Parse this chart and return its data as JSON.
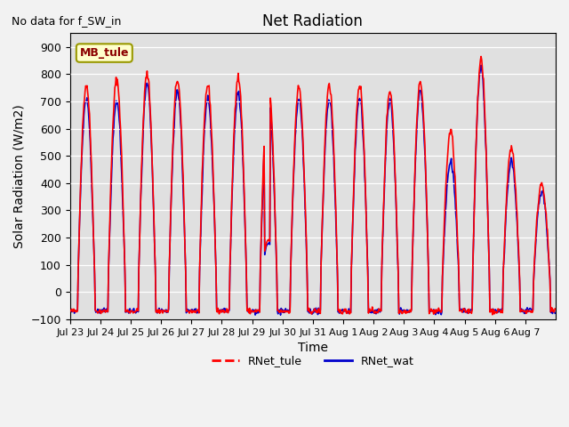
{
  "title": "Net Radiation",
  "subtitle": "No data for f_SW_in",
  "xlabel": "Time",
  "ylabel": "Solar Radiation (W/m2)",
  "ylim": [
    -100,
    950
  ],
  "yticks": [
    -100,
    0,
    100,
    200,
    300,
    400,
    500,
    600,
    700,
    800,
    900
  ],
  "x_tick_labels": [
    "Jul 23",
    "Jul 24",
    "Jul 25",
    "Jul 26",
    "Jul 27",
    "Jul 28",
    "Jul 29",
    "Jul 30",
    "Jul 31",
    "Aug 1",
    "Aug 2",
    "Aug 3",
    "Aug 4",
    "Aug 5",
    "Aug 6",
    "Aug 7"
  ],
  "color_tule": "#ff0000",
  "color_wat": "#0000cc",
  "legend_label_tule": "RNet_tule",
  "legend_label_wat": "RNet_wat",
  "legend_box_label": "MB_tule",
  "bg_color": "#e0e0e0",
  "fig_bg_color": "#f2f2f2",
  "n_days": 16,
  "pts_per_day": 48,
  "day_peaks_tule": [
    760,
    780,
    800,
    780,
    760,
    790,
    760,
    750,
    760,
    760,
    740,
    770,
    590,
    850,
    530,
    400
  ],
  "day_peaks_wat": [
    710,
    700,
    760,
    740,
    710,
    730,
    715,
    705,
    710,
    710,
    700,
    740,
    480,
    820,
    480,
    370
  ],
  "night_min": -70,
  "line_width": 1.2
}
